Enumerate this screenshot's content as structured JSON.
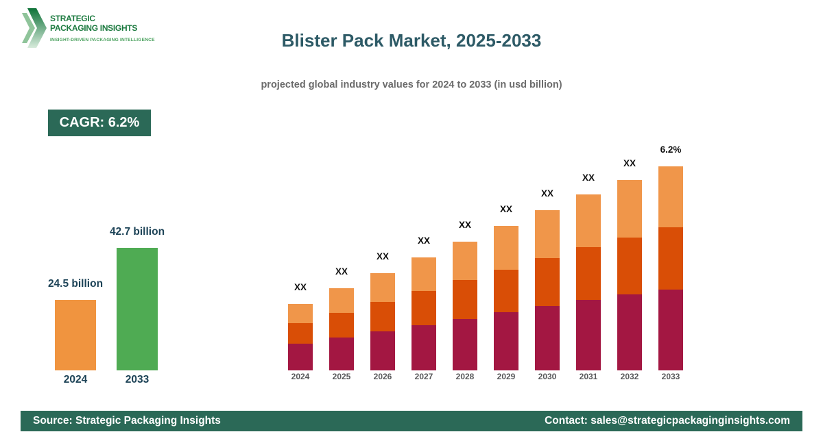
{
  "brand": {
    "name_line1": "STRATEGIC",
    "name_line2": "PACKAGING INSIGHTS",
    "tagline": "INSIGHT-DRIVEN PACKAGING INTELLIGENCE",
    "text_color": "#1E7B41",
    "tagline_color": "#48A05C",
    "chevron_dark": "#0E7238",
    "chevron_light": "#8FC49A"
  },
  "header": {
    "title": "Blister Pack Market, 2025-2033",
    "subtitle": "projected global industry values for 2024 to 2033 (in usd billion)",
    "cagr_badge": "CAGR: 6.2%",
    "title_color": "#2D5A66",
    "badge_bg": "#2B6957"
  },
  "footer": {
    "source": "Source: Strategic Packaging Insights",
    "contact": "Contact: sales@strategicpackaginginsights.com",
    "bg": "#2B6957"
  },
  "chart_data": [
    {
      "id": "growth-comparison",
      "type": "bar",
      "title": "",
      "xlabel": "",
      "ylabel": "",
      "unit": "usd billion",
      "categories": [
        "2024",
        "2033"
      ],
      "values": [
        24.5,
        42.7
      ],
      "value_labels": [
        "24.5 billion",
        "42.7 billion"
      ],
      "bar_colors": [
        "#F0943F",
        "#4FAB53"
      ],
      "label_color": "#1D4357",
      "grid": false,
      "axes_shown": false
    },
    {
      "id": "annual-stacked",
      "type": "bar",
      "stacked": true,
      "title": "",
      "xlabel": "",
      "ylabel": "",
      "categories": [
        "2024",
        "2025",
        "2026",
        "2027",
        "2028",
        "2029",
        "2030",
        "2031",
        "2032",
        "2033"
      ],
      "series": [
        {
          "name": "bottom-segment",
          "color": "#A31742",
          "values": [
            39,
            48,
            57,
            66,
            75,
            85,
            94,
            103,
            111,
            118
          ]
        },
        {
          "name": "middle-segment",
          "color": "#D94E06",
          "values": [
            30,
            36,
            43,
            50,
            57,
            62,
            70,
            77,
            83,
            91
          ]
        },
        {
          "name": "top-segment",
          "color": "#F0964A",
          "values": [
            28,
            36,
            42,
            49,
            56,
            64,
            70,
            77,
            84,
            89
          ]
        }
      ],
      "bar_total_labels": [
        "XX",
        "XX",
        "XX",
        "XX",
        "XX",
        "XX",
        "XX",
        "XX",
        "XX",
        "6.2%"
      ],
      "values_unit": "depicted relative heights (numeric values shown as XX placeholders)",
      "grid": false,
      "axes_shown": false
    }
  ]
}
